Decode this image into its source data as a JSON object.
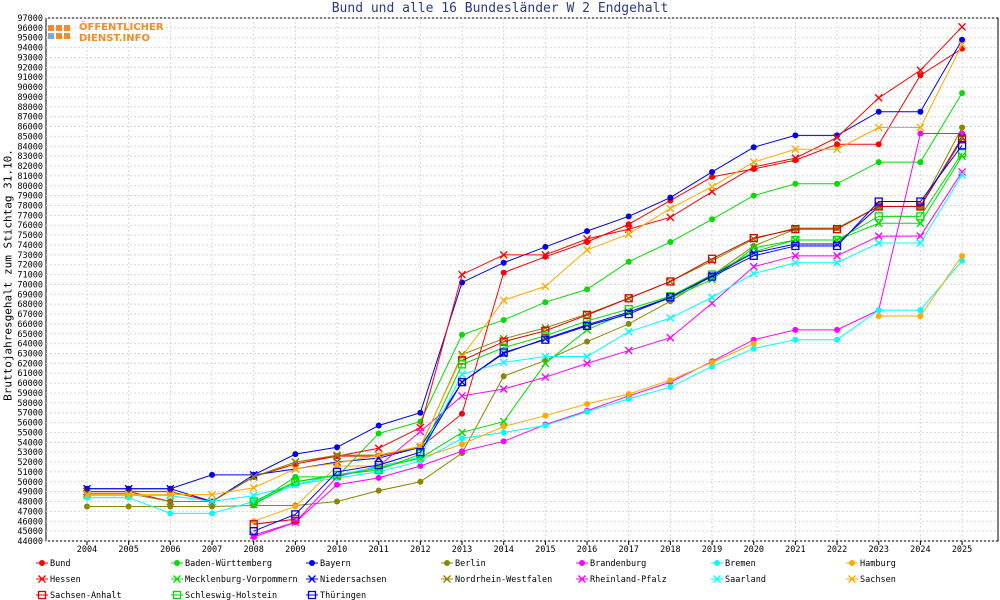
{
  "chart_data": {
    "type": "line",
    "title": "Bund und alle 16 Bundesländer W 2 Endgehalt",
    "ylabel": "Bruttojahresgehalt zum Stichtag 31.10.",
    "xlabel": "",
    "ylim": [
      44000,
      97000
    ],
    "x": [
      "2004",
      "2005",
      "2006",
      "2007",
      "2008",
      "2009",
      "2010",
      "2011",
      "2012",
      "2013",
      "2014",
      "2015",
      "2016",
      "2017",
      "2018",
      "2019",
      "2020",
      "2021",
      "2022",
      "2023",
      "2024",
      "2025"
    ],
    "grid": true,
    "legend": "bottom",
    "series": [
      {
        "name": "Bund",
        "color": "#ff0000",
        "marker": "dot",
        "values": [
          49000,
          49000,
          48000,
          48000,
          50500,
          51800,
          52600,
          52600,
          53500,
          56900,
          71200,
          72800,
          74300,
          76100,
          78500,
          80900,
          81700,
          82600,
          84200,
          84200,
          91200,
          93900
        ]
      },
      {
        "name": "Baden-Württemberg",
        "color": "#00dd00",
        "marker": "dot",
        "values": [
          null,
          null,
          null,
          null,
          47700,
          50500,
          50500,
          54900,
          56100,
          64900,
          66400,
          68200,
          69500,
          72300,
          74300,
          76600,
          79000,
          80200,
          80200,
          82400,
          82400,
          89400
        ]
      },
      {
        "name": "Bayern",
        "color": "#0000ee",
        "marker": "dot",
        "values": [
          49300,
          49300,
          49300,
          50700,
          50700,
          52800,
          53500,
          55700,
          57000,
          70200,
          72200,
          73800,
          75400,
          76900,
          78800,
          81400,
          83900,
          85100,
          85100,
          87500,
          87500,
          94800
        ]
      },
      {
        "name": "Berlin",
        "color": "#888800",
        "marker": "dot",
        "values": [
          47500,
          47500,
          47500,
          47500,
          47600,
          47600,
          48000,
          49100,
          50000,
          52900,
          60700,
          62300,
          64200,
          66000,
          68300,
          70900,
          73900,
          75600,
          75700,
          77900,
          77900,
          85900
        ]
      },
      {
        "name": "Brandenburg",
        "color": "#ff00ff",
        "marker": "dot",
        "values": [
          null,
          null,
          null,
          null,
          44400,
          45900,
          49700,
          50400,
          51600,
          53100,
          54100,
          55800,
          57200,
          58700,
          60100,
          62200,
          64400,
          65400,
          65400,
          67400,
          85300,
          85300
        ]
      },
      {
        "name": "Bremen",
        "color": "#00ffff",
        "marker": "dot",
        "values": [
          48400,
          48400,
          46800,
          46800,
          48000,
          49700,
          50400,
          51000,
          52100,
          54400,
          55000,
          55700,
          57100,
          58400,
          59600,
          61700,
          63500,
          64400,
          64400,
          67400,
          67400,
          72400
        ]
      },
      {
        "name": "Hamburg",
        "color": "#ffaa00",
        "marker": "dot",
        "values": [
          null,
          null,
          null,
          null,
          46000,
          47500,
          51600,
          51600,
          52400,
          53800,
          55600,
          56700,
          57900,
          58900,
          60300,
          62100,
          64000,
          null,
          null,
          66800,
          66800,
          72900
        ]
      },
      {
        "name": "Hessen",
        "color": "#ff0000",
        "marker": "x",
        "values": [
          49000,
          49000,
          49000,
          48000,
          50500,
          52000,
          52600,
          53400,
          55500,
          71000,
          73000,
          73000,
          74600,
          75600,
          76800,
          79400,
          81900,
          82800,
          84900,
          88900,
          91700,
          96100
        ]
      },
      {
        "name": "Mecklenburg-Vorpommern",
        "color": "#00dd00",
        "marker": "x",
        "values": [
          null,
          null,
          null,
          null,
          47700,
          50000,
          50600,
          51400,
          52400,
          55000,
          56100,
          62000,
          65400,
          67200,
          68600,
          70500,
          73700,
          74500,
          74500,
          76200,
          76200,
          83000
        ]
      },
      {
        "name": "Niedersachsen",
        "color": "#0000ee",
        "marker": "x",
        "values": [
          49300,
          49300,
          49300,
          48000,
          50700,
          51300,
          52000,
          52400,
          53500,
          60100,
          63000,
          64500,
          65900,
          67200,
          68700,
          70900,
          73200,
          74100,
          74100,
          77900,
          77900,
          84900
        ]
      },
      {
        "name": "Nordrhein-Westfalen",
        "color": "#888800",
        "marker": "x",
        "values": [
          48800,
          48800,
          48000,
          48000,
          50500,
          52000,
          52700,
          52700,
          53500,
          62900,
          64500,
          65600,
          67000,
          68600,
          70300,
          72400,
          74600,
          75700,
          75700,
          77900,
          77900,
          84800
        ]
      },
      {
        "name": "Rheinland-Pfalz",
        "color": "#ff00ff",
        "marker": "x",
        "values": [
          null,
          null,
          null,
          null,
          44600,
          45900,
          50500,
          51600,
          55100,
          58700,
          59400,
          60600,
          62000,
          63300,
          64600,
          68100,
          71800,
          72900,
          72900,
          74900,
          74900,
          81400
        ]
      },
      {
        "name": "Saarland",
        "color": "#00ffff",
        "marker": "x",
        "values": [
          48600,
          48600,
          48600,
          48000,
          48600,
          49700,
          50700,
          51500,
          52500,
          60900,
          62100,
          62700,
          62700,
          65200,
          66600,
          68700,
          71100,
          72200,
          72200,
          74200,
          74200,
          81100
        ]
      },
      {
        "name": "Sachsen",
        "color": "#ffaa00",
        "marker": "x",
        "values": [
          48700,
          48700,
          48700,
          48700,
          49400,
          51300,
          51900,
          52700,
          53600,
          62700,
          68400,
          69800,
          73500,
          75100,
          77700,
          79900,
          82400,
          83700,
          83700,
          85900,
          85900,
          94300
        ]
      },
      {
        "name": "Sachsen-Anhalt",
        "color": "#dd0000",
        "marker": "square",
        "values": [
          null,
          null,
          null,
          null,
          45700,
          46200,
          null,
          null,
          null,
          62300,
          64200,
          65300,
          66900,
          68600,
          70300,
          72600,
          74700,
          75600,
          75600,
          77900,
          77900,
          84700
        ]
      },
      {
        "name": "Schleswig-Holstein",
        "color": "#00dd00",
        "marker": "square",
        "values": [
          null,
          null,
          null,
          null,
          48000,
          50000,
          50700,
          51200,
          52800,
          61900,
          63600,
          64800,
          66300,
          67500,
          68800,
          71000,
          73300,
          74500,
          74500,
          76900,
          76900,
          83300
        ]
      },
      {
        "name": "Thüringen",
        "color": "#0000ee",
        "marker": "square",
        "values": [
          null,
          null,
          null,
          null,
          45000,
          46700,
          51000,
          51700,
          53000,
          60100,
          63100,
          64400,
          65800,
          67000,
          68700,
          70800,
          72900,
          73900,
          73900,
          78400,
          78400,
          84100
        ]
      }
    ]
  },
  "logo": {
    "line1": "ÖFFENTLICHER",
    "line2": "DIENST.INFO"
  }
}
